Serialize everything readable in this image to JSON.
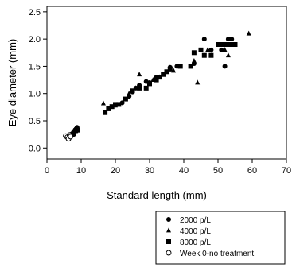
{
  "chart_data": {
    "type": "scatter",
    "title": "",
    "xlabel": "Standard length (mm)",
    "ylabel": "Eye diameter (mm)",
    "xlim": [
      0,
      70
    ],
    "ylim": [
      -0.2,
      2.6
    ],
    "xticks": [
      0,
      10,
      20,
      30,
      40,
      50,
      60,
      70
    ],
    "yticks": [
      0.0,
      0.5,
      1.0,
      1.5,
      2.0,
      2.5
    ],
    "xtick_labels": [
      "0",
      "10",
      "20",
      "30",
      "40",
      "50",
      "60",
      "70"
    ],
    "ytick_labels": [
      "0.0",
      "0.5",
      "1.0",
      "1.5",
      "2.0",
      "2.5"
    ],
    "grid": false,
    "legend_position": "bottom-right",
    "series": [
      {
        "name": "2000 p/L",
        "marker": "circle-filled",
        "points": [
          [
            7.0,
            0.22
          ],
          [
            7.5,
            0.27
          ],
          [
            7.8,
            0.3
          ],
          [
            8.2,
            0.33
          ],
          [
            8.5,
            0.35
          ],
          [
            8.8,
            0.38
          ],
          [
            9.0,
            0.34
          ],
          [
            8.0,
            0.29
          ],
          [
            22,
            0.83
          ],
          [
            24,
            0.95
          ],
          [
            25,
            1.03
          ],
          [
            26,
            1.1
          ],
          [
            27,
            1.15
          ],
          [
            29,
            1.22
          ],
          [
            30,
            1.2
          ],
          [
            32,
            1.3
          ],
          [
            36,
            1.48
          ],
          [
            38,
            1.5
          ],
          [
            43,
            1.55
          ],
          [
            46,
            2.0
          ],
          [
            48,
            1.8
          ],
          [
            51,
            1.8
          ],
          [
            52,
            1.5
          ],
          [
            53,
            2.0
          ],
          [
            54,
            2.0
          ]
        ]
      },
      {
        "name": "4000 p/L",
        "marker": "triangle-filled",
        "points": [
          [
            7.2,
            0.24
          ],
          [
            7.6,
            0.28
          ],
          [
            8.3,
            0.31
          ],
          [
            8.7,
            0.36
          ],
          [
            16.5,
            0.82
          ],
          [
            20,
            0.78
          ],
          [
            24,
            1.0
          ],
          [
            26,
            1.1
          ],
          [
            27,
            1.35
          ],
          [
            31,
            1.25
          ],
          [
            33,
            1.3
          ],
          [
            37,
            1.42
          ],
          [
            43,
            1.6
          ],
          [
            44,
            1.2
          ],
          [
            47,
            1.8
          ],
          [
            48,
            1.7
          ],
          [
            52,
            1.8
          ],
          [
            53,
            1.7
          ],
          [
            59,
            2.1
          ]
        ]
      },
      {
        "name": "8000 p/L",
        "marker": "square-filled",
        "points": [
          [
            7.4,
            0.25
          ],
          [
            7.9,
            0.26
          ],
          [
            8.4,
            0.32
          ],
          [
            8.9,
            0.33
          ],
          [
            17,
            0.65
          ],
          [
            18,
            0.72
          ],
          [
            19,
            0.76
          ],
          [
            20,
            0.8
          ],
          [
            21,
            0.8
          ],
          [
            23,
            0.9
          ],
          [
            25,
            1.05
          ],
          [
            27,
            1.1
          ],
          [
            29,
            1.1
          ],
          [
            30,
            1.18
          ],
          [
            32,
            1.25
          ],
          [
            33,
            1.3
          ],
          [
            34,
            1.35
          ],
          [
            35,
            1.4
          ],
          [
            36,
            1.45
          ],
          [
            39,
            1.5
          ],
          [
            42,
            1.5
          ],
          [
            43,
            1.75
          ],
          [
            45,
            1.8
          ],
          [
            46,
            1.7
          ],
          [
            48,
            1.7
          ],
          [
            50,
            1.9
          ],
          [
            51,
            1.9
          ],
          [
            52,
            1.9
          ],
          [
            53,
            1.9
          ],
          [
            54,
            1.9
          ],
          [
            55,
            1.9
          ]
        ]
      },
      {
        "name": "Week 0-no treatment",
        "marker": "circle-open",
        "points": [
          [
            5.5,
            0.22
          ],
          [
            6.0,
            0.2
          ],
          [
            6.3,
            0.17
          ],
          [
            6.6,
            0.24
          ],
          [
            6.9,
            0.21
          ]
        ]
      }
    ]
  }
}
